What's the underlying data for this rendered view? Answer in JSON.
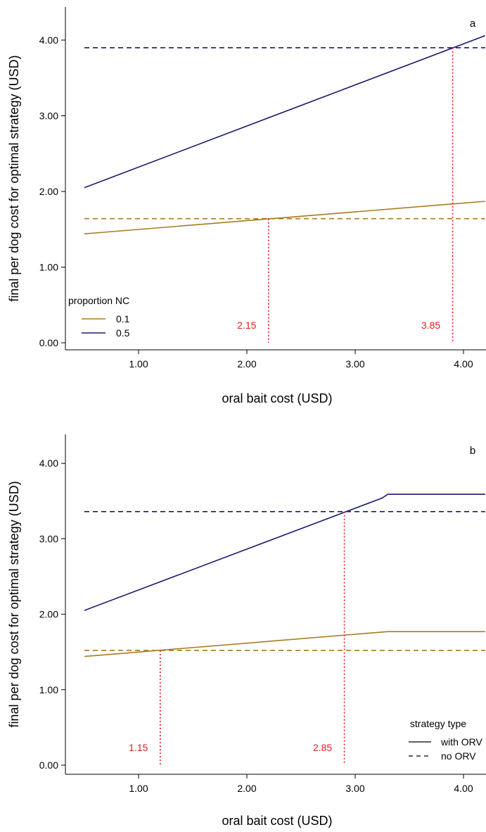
{
  "colors": {
    "nc_0_1": "#A87A1E",
    "nc_0_5": "#1A1A6E",
    "annotation": "#E0201B"
  },
  "chart_data": [
    {
      "type": "line",
      "panel_label": "a",
      "xlabel": "oral bait cost (USD)",
      "ylabel": "final per dog cost for optimal strategy (USD)",
      "xlim": [
        0.5,
        4.2
      ],
      "ylim": [
        0,
        4.4
      ],
      "xticks": [
        "1.00",
        "2.00",
        "3.00",
        "4.00"
      ],
      "yticks": [
        "0.00",
        "1.00",
        "2.00",
        "3.00",
        "4.00"
      ],
      "legend": {
        "title": "proportion NC",
        "position": "bottom-left",
        "entries": [
          "0.1",
          "0.5"
        ]
      },
      "series": [
        {
          "name": "0.1",
          "color": "#A87A1E",
          "dash": "solid",
          "x": [
            0.5,
            4.2
          ],
          "y": [
            1.44,
            1.87
          ]
        },
        {
          "name": "0.5",
          "color": "#1A1A6E",
          "dash": "solid",
          "x": [
            0.5,
            4.2
          ],
          "y": [
            2.05,
            4.06
          ]
        },
        {
          "color": "#A87A1E",
          "dash": "dashed",
          "x": [
            0.5,
            4.2
          ],
          "y": [
            1.64,
            1.64
          ]
        },
        {
          "color": "#1A1A6E",
          "dash": "dashed",
          "x": [
            0.5,
            4.2
          ],
          "y": [
            3.9,
            3.9
          ]
        }
      ],
      "annotations": [
        {
          "label": "2.15",
          "x": 2.2,
          "y": 1.64
        },
        {
          "label": "3.85",
          "x": 3.9,
          "y": 3.9
        }
      ]
    },
    {
      "type": "line",
      "panel_label": "b",
      "xlabel": "oral bait cost (USD)",
      "ylabel": "final per dog cost for optimal strategy (USD)",
      "xlim": [
        0.5,
        4.2
      ],
      "ylim": [
        0,
        4.4
      ],
      "xticks": [
        "1.00",
        "2.00",
        "3.00",
        "4.00"
      ],
      "yticks": [
        "0.00",
        "1.00",
        "2.00",
        "3.00",
        "4.00"
      ],
      "legend": {
        "title": "strategy type",
        "position": "bottom-right",
        "entries": [
          "with ORV",
          "no ORV"
        ]
      },
      "series": [
        {
          "color": "#A87A1E",
          "dash": "solid",
          "x": [
            0.5,
            3.3,
            4.2
          ],
          "y": [
            1.44,
            1.77,
            1.77
          ]
        },
        {
          "color": "#1A1A6E",
          "dash": "solid",
          "x": [
            0.5,
            3.25,
            3.3,
            4.2
          ],
          "y": [
            2.05,
            3.54,
            3.59,
            3.59
          ]
        },
        {
          "color": "#A87A1E",
          "dash": "dashed",
          "x": [
            0.5,
            4.2
          ],
          "y": [
            1.52,
            1.52
          ]
        },
        {
          "color": "#1A1A6E",
          "dash": "dashed",
          "x": [
            0.5,
            4.2
          ],
          "y": [
            3.36,
            3.36
          ]
        }
      ],
      "annotations": [
        {
          "label": "1.15",
          "x": 1.2,
          "y": 1.52
        },
        {
          "label": "2.85",
          "x": 2.9,
          "y": 3.36
        }
      ]
    }
  ]
}
